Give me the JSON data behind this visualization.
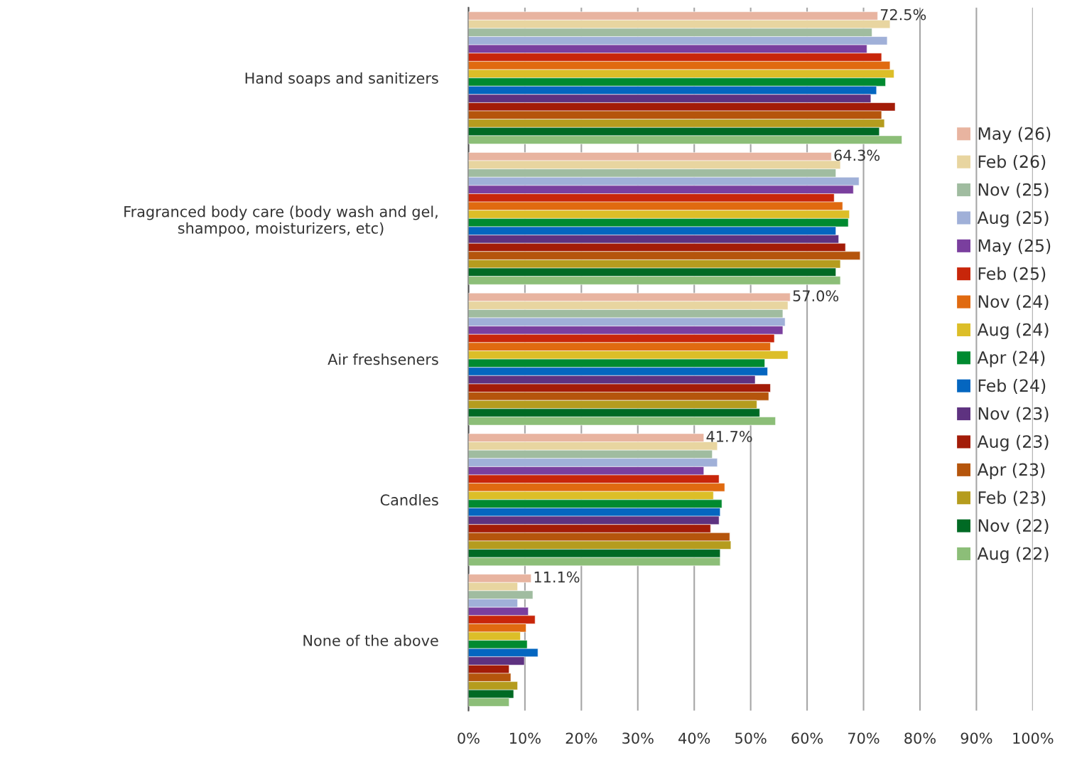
{
  "chart_data": {
    "type": "bar",
    "orientation": "horizontal",
    "categories": [
      "Hand soaps and sanitizers",
      "Fragranced body care (body wash and gel,\nshampoo, moisturizers, etc)",
      "Air freshseners",
      "Candles",
      "None of the above"
    ],
    "series": [
      {
        "name": "May (26)",
        "color": "#e8b4a0",
        "values": [
          72.5,
          64.3,
          57.0,
          41.7,
          11.1
        ],
        "value_labels": [
          "72.5%",
          "64.3%",
          "57.0%",
          "41.7%",
          "11.1%"
        ]
      },
      {
        "name": "Feb (26)",
        "color": "#e8d5a0",
        "values": [
          74.7,
          65.9,
          56.6,
          44.1,
          8.7
        ]
      },
      {
        "name": "Nov (25)",
        "color": "#a0bca0",
        "values": [
          71.5,
          65.1,
          55.7,
          43.2,
          11.4
        ]
      },
      {
        "name": "Aug (25)",
        "color": "#a0b0d8",
        "values": [
          74.2,
          69.2,
          56.1,
          44.1,
          8.7
        ]
      },
      {
        "name": "May (25)",
        "color": "#7a3f9e",
        "values": [
          70.6,
          68.2,
          55.7,
          41.7,
          10.6
        ]
      },
      {
        "name": "Feb (25)",
        "color": "#c8260a",
        "values": [
          73.2,
          64.8,
          54.2,
          44.4,
          11.8
        ]
      },
      {
        "name": "Nov (24)",
        "color": "#e06a10",
        "values": [
          74.7,
          66.3,
          53.5,
          45.4,
          10.2
        ]
      },
      {
        "name": "Aug (24)",
        "color": "#dcbe28",
        "values": [
          75.4,
          67.5,
          56.6,
          43.4,
          9.2
        ]
      },
      {
        "name": "Apr (24)",
        "color": "#008a30",
        "values": [
          73.9,
          67.3,
          52.5,
          44.9,
          10.4
        ]
      },
      {
        "name": "Feb (24)",
        "color": "#0466c0",
        "values": [
          72.3,
          65.1,
          53.0,
          44.6,
          12.3
        ]
      },
      {
        "name": "Nov (23)",
        "color": "#5e3280",
        "values": [
          71.3,
          65.6,
          50.8,
          44.4,
          9.9
        ]
      },
      {
        "name": "Aug (23)",
        "color": "#a31c08",
        "values": [
          75.6,
          66.8,
          53.5,
          42.9,
          7.2
        ]
      },
      {
        "name": "Apr (23)",
        "color": "#b5550c",
        "values": [
          73.2,
          69.4,
          53.2,
          46.3,
          7.5
        ]
      },
      {
        "name": "Feb (23)",
        "color": "#b59c1e",
        "values": [
          73.7,
          65.9,
          51.1,
          46.5,
          8.7
        ]
      },
      {
        "name": "Nov (22)",
        "color": "#006a24",
        "values": [
          72.8,
          65.1,
          51.6,
          44.6,
          8.0
        ]
      },
      {
        "name": "Aug (22)",
        "color": "#8cbe78",
        "values": [
          76.8,
          65.9,
          54.4,
          44.6,
          7.2
        ]
      }
    ],
    "xlim": [
      0,
      100
    ],
    "xticks": [
      {
        "value": 0,
        "label": "0%"
      },
      {
        "value": 10,
        "label": "10%"
      },
      {
        "value": 20,
        "label": "20%"
      },
      {
        "value": 30,
        "label": "30%"
      },
      {
        "value": 40,
        "label": "40%"
      },
      {
        "value": 50,
        "label": "50%"
      },
      {
        "value": 60,
        "label": "60%"
      },
      {
        "value": 70,
        "label": "70%"
      },
      {
        "value": 80,
        "label": "80%"
      },
      {
        "value": 90,
        "label": "90%"
      },
      {
        "value": 100,
        "label": "100%"
      }
    ],
    "grid": "x",
    "legend": "right"
  }
}
